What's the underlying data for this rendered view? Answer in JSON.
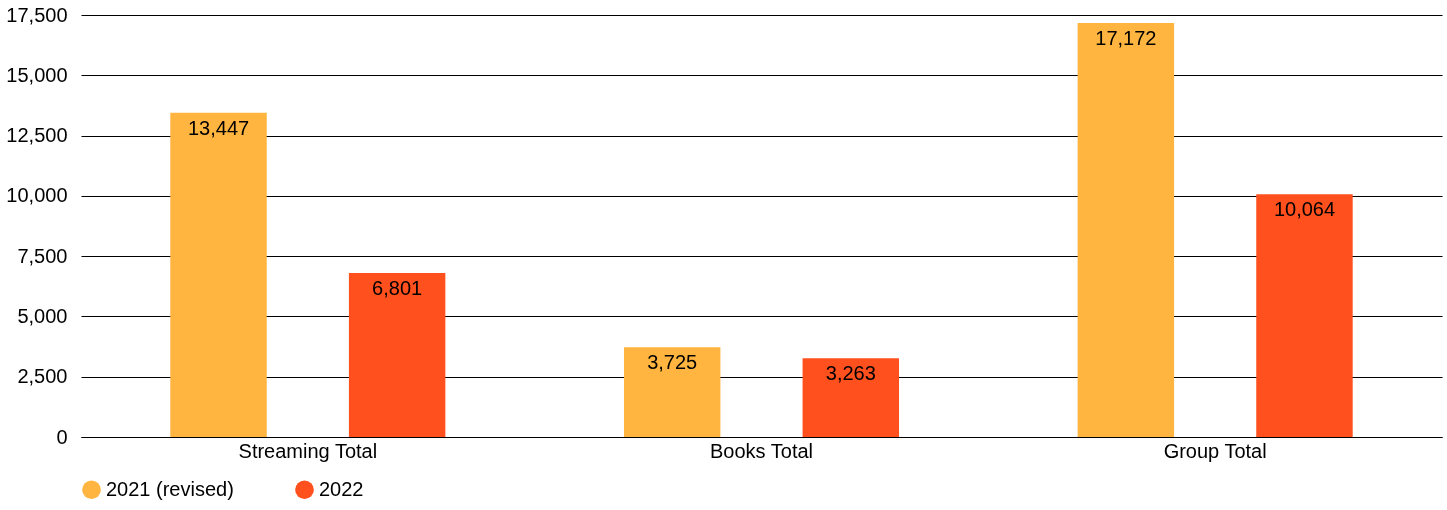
{
  "chart_data": {
    "type": "bar",
    "categories": [
      "Streaming Total",
      "Books Total",
      "Group Total"
    ],
    "series": [
      {
        "name": "2021 (revised)",
        "color": "#ffb53f",
        "values": [
          13447,
          3725,
          17172
        ],
        "value_labels": [
          "13,447",
          "3,725",
          "17,172"
        ]
      },
      {
        "name": "2022",
        "color": "#ff501e",
        "values": [
          6801,
          3263,
          10064
        ],
        "value_labels": [
          "6,801",
          "3,263",
          "10,064"
        ]
      }
    ],
    "ylim": [
      0,
      17500
    ],
    "yticks": [
      0,
      {
        "value": 2500,
        "label": "2,500"
      },
      {
        "value": 5000,
        "label": "5,000"
      },
      {
        "value": 7500,
        "label": "7,500"
      },
      {
        "value": 10000,
        "label": "10,000"
      },
      {
        "value": 12500,
        "label": "12,500"
      },
      {
        "value": 15000,
        "label": "15,000"
      },
      {
        "value": 17500,
        "label": "17,500"
      }
    ],
    "grid": "y",
    "legend": "bottom"
  }
}
